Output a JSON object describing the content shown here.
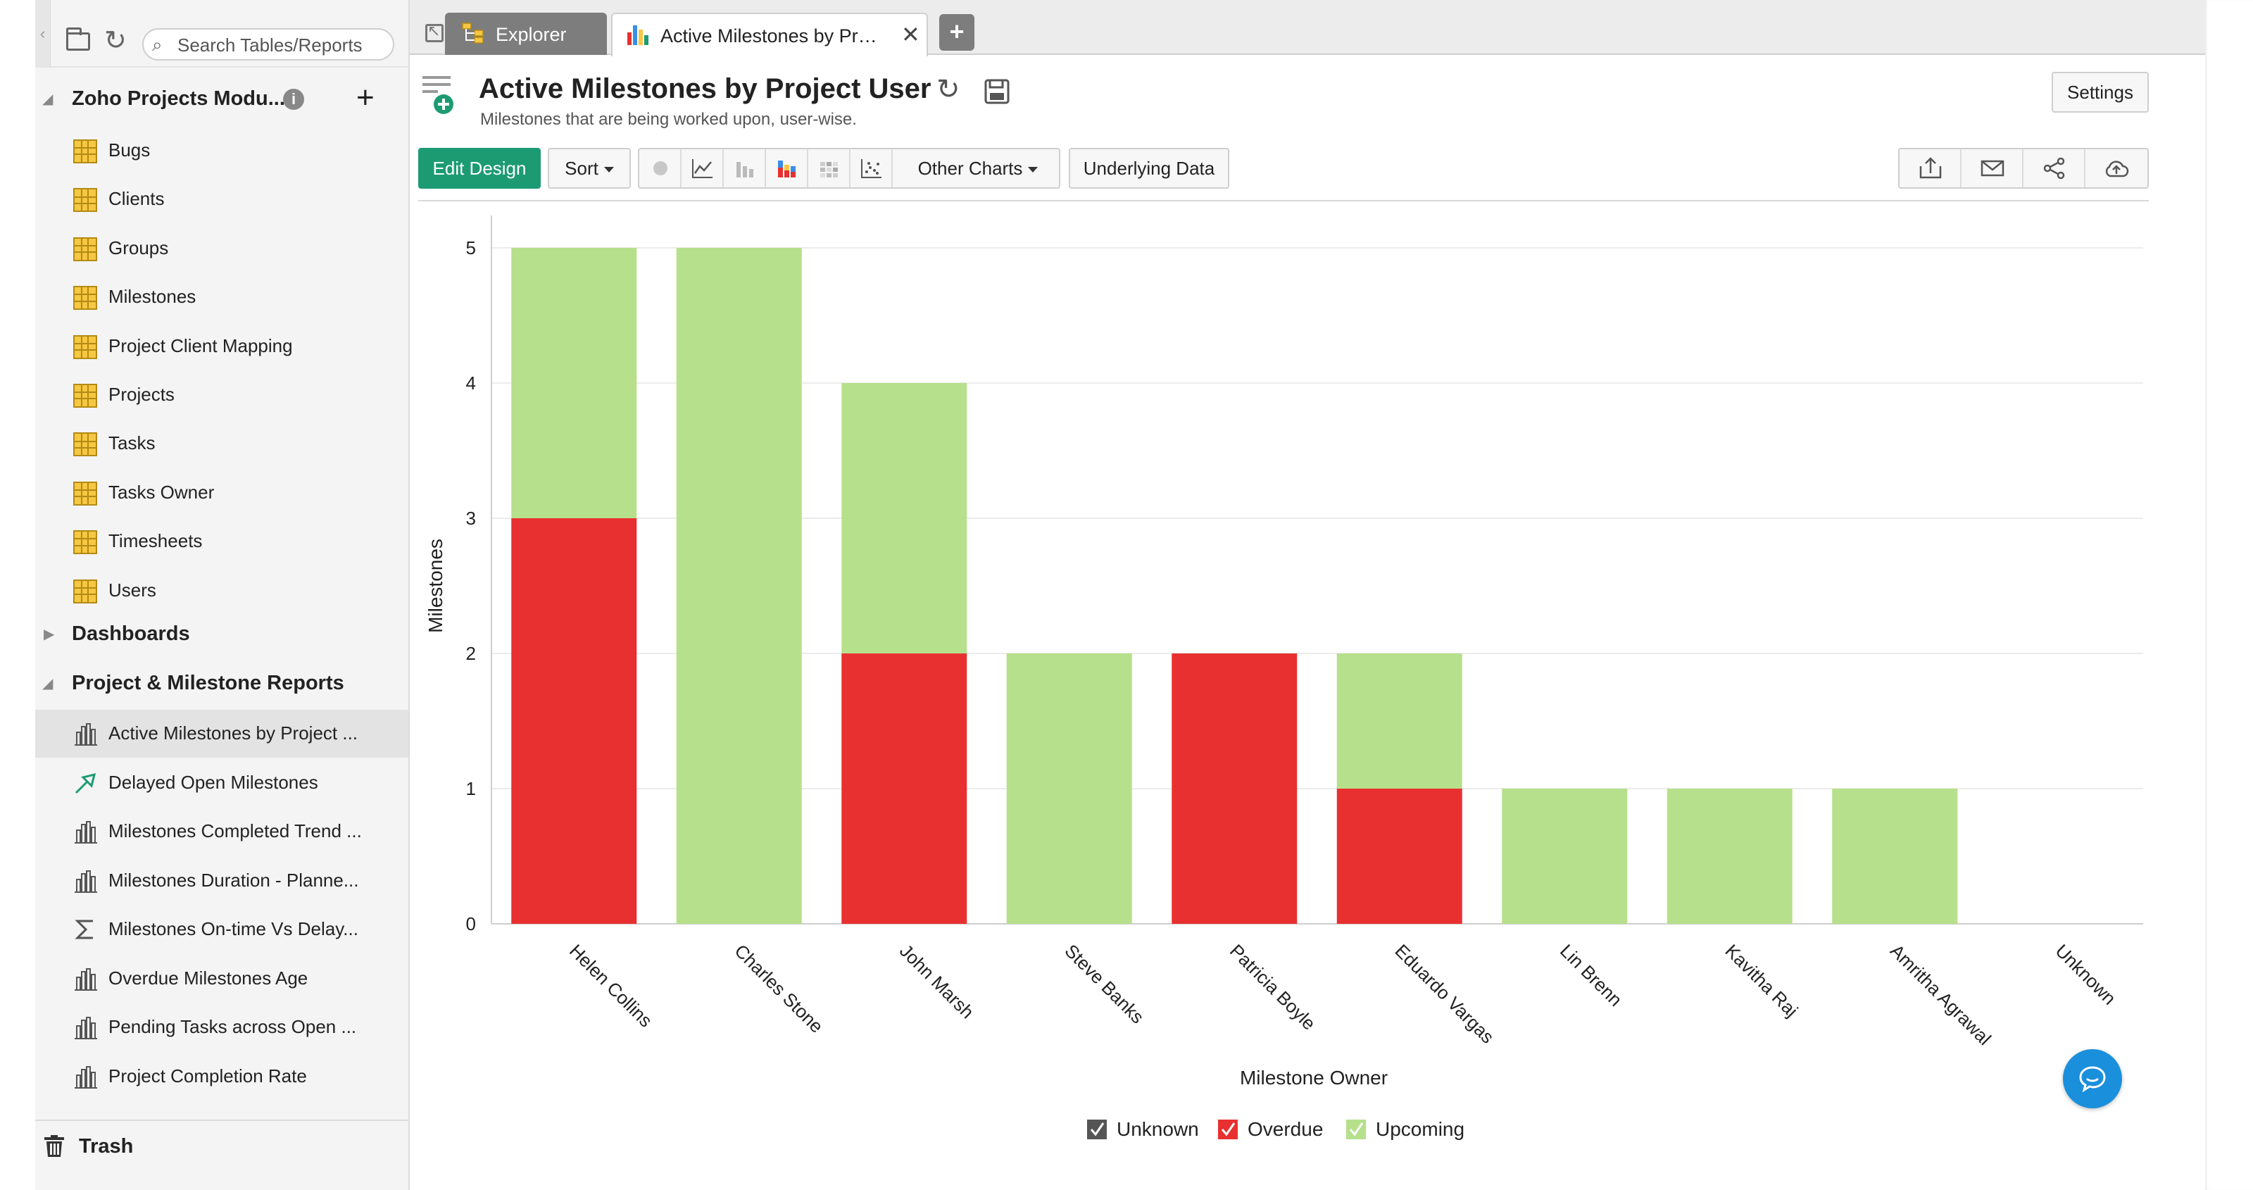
{
  "sidebar": {
    "search_placeholder": "Search Tables/Reports",
    "workspace_title": "Zoho Projects Modu...",
    "tables": [
      {
        "label": "Bugs"
      },
      {
        "label": "Clients"
      },
      {
        "label": "Groups"
      },
      {
        "label": "Milestones"
      },
      {
        "label": "Project Client Mapping"
      },
      {
        "label": "Projects"
      },
      {
        "label": "Tasks"
      },
      {
        "label": "Tasks Owner"
      },
      {
        "label": "Timesheets"
      },
      {
        "label": "Users"
      }
    ],
    "dashboards_label": "Dashboards",
    "reports_section_label": "Project & Milestone Reports",
    "reports": [
      {
        "label": "Active Milestones by Project ...",
        "icon": "bar-chart-icon"
      },
      {
        "label": "Delayed Open Milestones",
        "icon": "trend-arrow-icon"
      },
      {
        "label": "Milestones Completed Trend ...",
        "icon": "bar-chart-icon"
      },
      {
        "label": "Milestones Duration - Planne...",
        "icon": "bar-chart-icon"
      },
      {
        "label": "Milestones On-time Vs Delay...",
        "icon": "sigma-icon"
      },
      {
        "label": "Overdue Milestones Age",
        "icon": "bar-chart-icon"
      },
      {
        "label": "Pending Tasks across Open ...",
        "icon": "bar-chart-icon"
      },
      {
        "label": "Project Completion Rate",
        "icon": "bar-chart-icon"
      }
    ],
    "trash_label": "Trash"
  },
  "tabs": {
    "explorer": "Explorer",
    "active": "Active Milestones by Proje..."
  },
  "report": {
    "title": "Active Milestones by Project User",
    "subtitle": "Milestones that are being worked upon, user-wise."
  },
  "toolbar": {
    "settings": "Settings",
    "edit_design": "Edit Design",
    "sort": "Sort",
    "other_charts": "Other Charts",
    "underlying_data": "Underlying Data"
  },
  "colors": {
    "accent": "#1c9b72",
    "overdue": "#e83030",
    "upcoming": "#b6e08b",
    "unknown": "#555555",
    "chat": "#1a8fdc"
  },
  "chart_data": {
    "type": "bar",
    "stacked": true,
    "xlabel": "Milestone Owner",
    "ylabel": "Milestones",
    "ylim": [
      0,
      5
    ],
    "yticks": [
      0,
      1,
      2,
      3,
      4,
      5
    ],
    "grid": true,
    "legend_position": "bottom",
    "categories": [
      "Helen Collins",
      "Charles Stone",
      "John Marsh",
      "Steve Banks",
      "Patricia Boyle",
      "Eduardo Vargas",
      "Lin Brenn",
      "Kavitha Raj",
      "Amritha Agrawal",
      "Unknown"
    ],
    "series": [
      {
        "name": "Unknown",
        "color": "#555555",
        "values": [
          0,
          0,
          0,
          0,
          0,
          0,
          0,
          0,
          0,
          0
        ]
      },
      {
        "name": "Overdue",
        "color": "#e83030",
        "values": [
          3,
          0,
          2,
          0,
          2,
          1,
          0,
          0,
          0,
          0
        ]
      },
      {
        "name": "Upcoming",
        "color": "#b6e08b",
        "values": [
          2,
          5,
          2,
          2,
          0,
          1,
          1,
          1,
          1,
          0
        ]
      }
    ]
  }
}
